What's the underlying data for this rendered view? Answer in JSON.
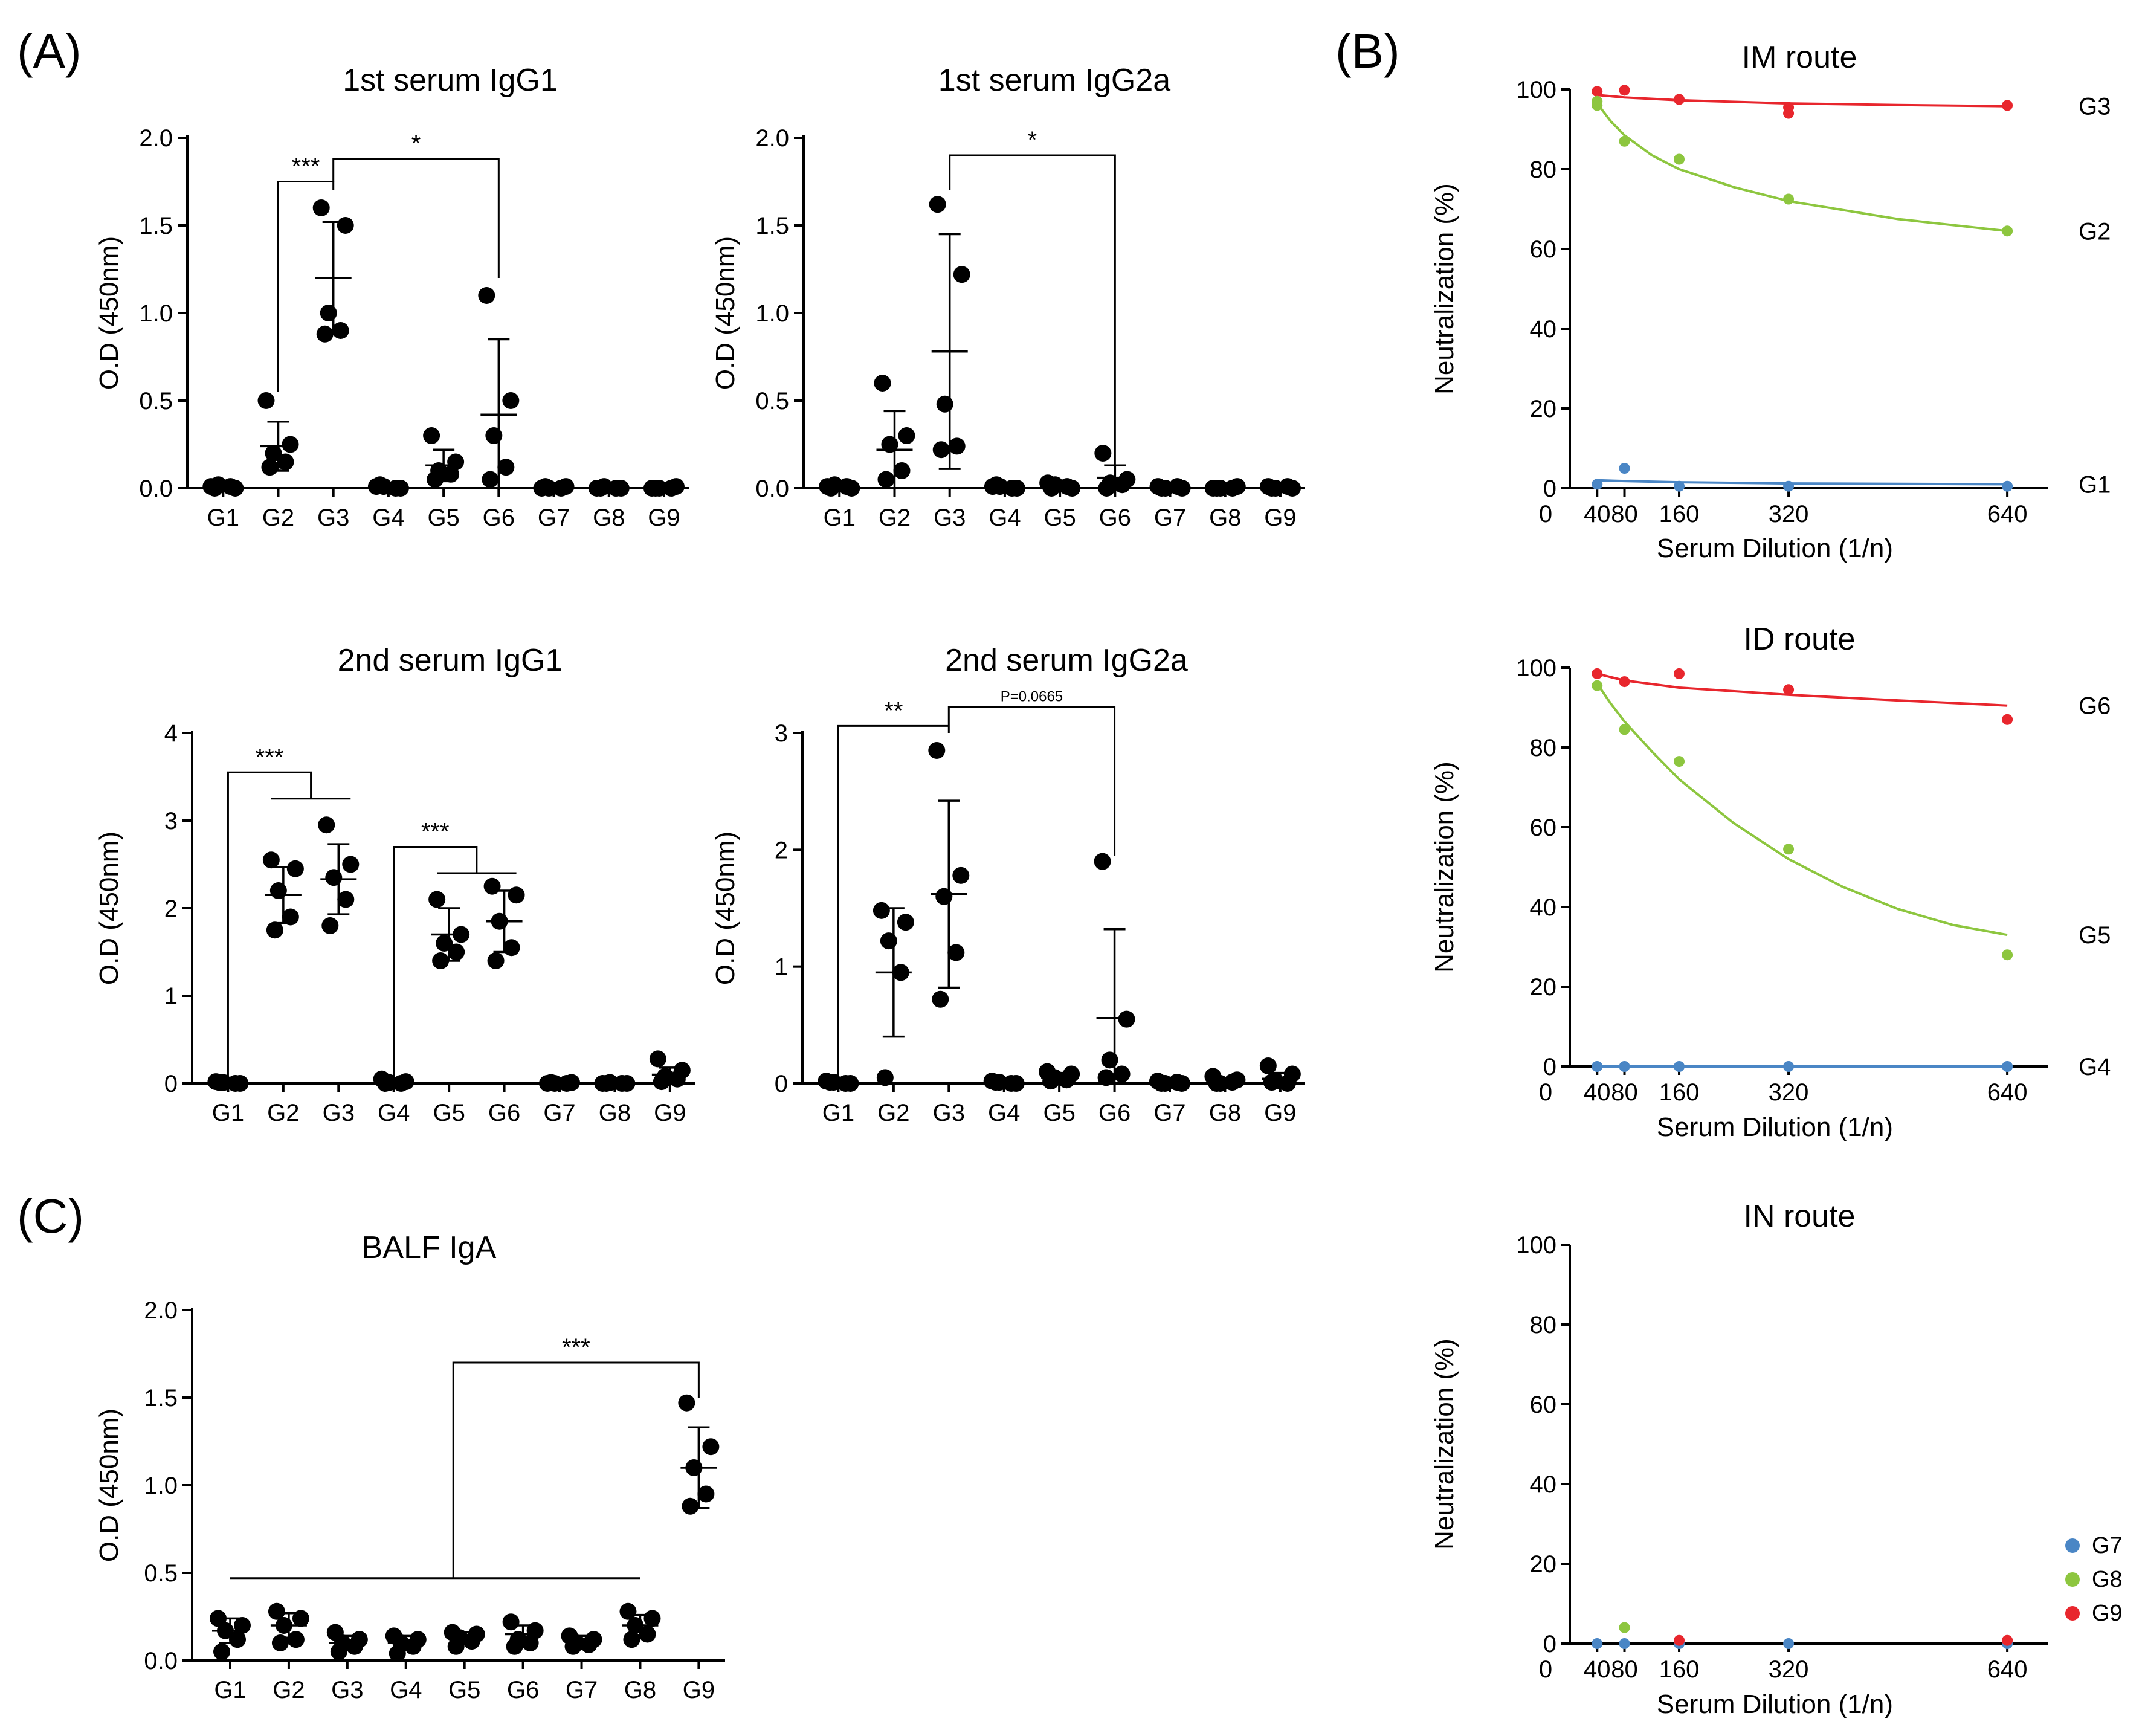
{
  "panel_labels": {
    "A": "(A)",
    "B": "(B)",
    "C": "(C)"
  },
  "chart_data": [
    {
      "id": "c1",
      "type": "scatter",
      "title": "1st serum IgG1",
      "ylabel": "O.D (450nm)",
      "xlabel": "",
      "ylim": [
        0,
        2.0
      ],
      "yticks": [
        0.0,
        0.5,
        1.0,
        1.5,
        2.0
      ],
      "ytick_labels": [
        "0.0",
        "0.5",
        "1.0",
        "1.5",
        "2.0"
      ],
      "categories": [
        "G1",
        "G2",
        "G3",
        "G4",
        "G5",
        "G6",
        "G7",
        "G8",
        "G9"
      ],
      "points": [
        [
          0.01,
          0.0,
          0.02,
          0.01,
          0.0
        ],
        [
          0.5,
          0.25,
          0.2,
          0.15,
          0.12
        ],
        [
          1.6,
          1.5,
          1.0,
          0.9,
          0.88
        ],
        [
          0.01,
          0.0,
          0.01,
          0.0,
          0.02
        ],
        [
          0.3,
          0.15,
          0.1,
          0.08,
          0.05
        ],
        [
          1.1,
          0.5,
          0.3,
          0.12,
          0.05
        ],
        [
          0.0,
          0.01,
          0.0,
          0.0,
          0.01
        ],
        [
          0.0,
          0.0,
          0.01,
          0.0,
          0.0
        ],
        [
          0.0,
          0.01,
          0.0,
          0.0,
          0.0
        ]
      ],
      "means": [
        0.01,
        0.24,
        1.2,
        0.01,
        0.13,
        0.42,
        0.0,
        0.0,
        0.0
      ],
      "sd": [
        0.0,
        0.14,
        0.32,
        0.0,
        0.09,
        0.43,
        0.0,
        0.0,
        0.0
      ],
      "significance": [
        {
          "type": "bracket",
          "from": 1,
          "to": 2,
          "y": 1.75,
          "drop_to": [
            0.55,
            1.7
          ],
          "label": "***"
        },
        {
          "type": "bracket",
          "from": 2,
          "to": 5,
          "y": 1.88,
          "drop_to": [
            1.75,
            1.2
          ],
          "label": "*"
        }
      ]
    },
    {
      "id": "c2",
      "type": "scatter",
      "title": "1st serum IgG2a",
      "ylabel": "O.D (450nm)",
      "xlabel": "",
      "ylim": [
        0,
        2.0
      ],
      "yticks": [
        0.0,
        0.5,
        1.0,
        1.5,
        2.0
      ],
      "ytick_labels": [
        "0.0",
        "0.5",
        "1.0",
        "1.5",
        "2.0"
      ],
      "categories": [
        "G1",
        "G2",
        "G3",
        "G4",
        "G5",
        "G6",
        "G7",
        "G8",
        "G9"
      ],
      "points": [
        [
          0.01,
          0.0,
          0.02,
          0.01,
          0.0
        ],
        [
          0.6,
          0.3,
          0.25,
          0.1,
          0.05
        ],
        [
          1.62,
          1.22,
          0.48,
          0.24,
          0.22
        ],
        [
          0.01,
          0.0,
          0.01,
          0.0,
          0.02
        ],
        [
          0.03,
          0.0,
          0.02,
          0.01,
          0.0
        ],
        [
          0.2,
          0.05,
          0.03,
          0.02,
          0.0
        ],
        [
          0.01,
          0.0,
          0.0,
          0.01,
          0.0
        ],
        [
          0.0,
          0.01,
          0.0,
          0.0,
          0.0
        ],
        [
          0.01,
          0.0,
          0.0,
          0.01,
          0.0
        ]
      ],
      "means": [
        0.01,
        0.22,
        0.78,
        0.01,
        0.01,
        0.06,
        0.0,
        0.0,
        0.0
      ],
      "sd": [
        0.0,
        0.22,
        0.67,
        0.0,
        0.01,
        0.07,
        0.0,
        0.0,
        0.0
      ],
      "significance": [
        {
          "type": "bracket",
          "from": 2,
          "to": 5,
          "y": 1.9,
          "drop_to": [
            1.7,
            0.12
          ],
          "label": "*"
        }
      ]
    },
    {
      "id": "c3",
      "type": "scatter",
      "title": "2nd serum IgG1",
      "ylabel": "O.D (450nm)",
      "xlabel": "",
      "ylim": [
        0,
        4
      ],
      "yticks": [
        0,
        1,
        2,
        3,
        4
      ],
      "ytick_labels": [
        "0",
        "1",
        "2",
        "3",
        "4"
      ],
      "categories": [
        "G1",
        "G2",
        "G3",
        "G4",
        "G5",
        "G6",
        "G7",
        "G8",
        "G9"
      ],
      "points": [
        [
          0.02,
          0.0,
          0.01,
          0.0,
          0.01
        ],
        [
          2.55,
          2.45,
          2.2,
          1.9,
          1.75
        ],
        [
          2.95,
          2.5,
          2.35,
          2.1,
          1.8
        ],
        [
          0.05,
          0.02,
          0.01,
          0.0,
          0.0
        ],
        [
          2.1,
          1.7,
          1.6,
          1.5,
          1.4
        ],
        [
          2.25,
          2.15,
          1.85,
          1.55,
          1.4
        ],
        [
          0.0,
          0.01,
          0.0,
          0.0,
          0.01
        ],
        [
          0.0,
          0.0,
          0.01,
          0.0,
          0.0
        ],
        [
          0.28,
          0.15,
          0.08,
          0.05,
          0.02
        ]
      ],
      "means": [
        0.01,
        2.15,
        2.33,
        0.02,
        1.7,
        1.85,
        0.0,
        0.0,
        0.1
      ],
      "sd": [
        0.0,
        0.32,
        0.4,
        0.01,
        0.3,
        0.35,
        0.0,
        0.0,
        0.08
      ],
      "significance": [
        {
          "type": "group",
          "from": 0,
          "to_group": [
            1,
            2
          ],
          "y": 3.55,
          "label": "***"
        },
        {
          "type": "group",
          "from": 3,
          "to_group": [
            4,
            5
          ],
          "y": 2.7,
          "label": "***"
        }
      ]
    },
    {
      "id": "c4",
      "type": "scatter",
      "title": "2nd serum IgG2a",
      "ylabel": "O.D (450nm)",
      "xlabel": "",
      "ylim": [
        0,
        3
      ],
      "yticks": [
        0,
        1,
        2,
        3
      ],
      "ytick_labels": [
        "0",
        "1",
        "2",
        "3"
      ],
      "categories": [
        "G1",
        "G2",
        "G3",
        "G4",
        "G5",
        "G6",
        "G7",
        "G8",
        "G9"
      ],
      "points": [
        [
          0.02,
          0.0,
          0.01,
          0.0,
          0.01
        ],
        [
          1.48,
          1.38,
          1.22,
          0.95,
          0.05
        ],
        [
          2.85,
          1.78,
          1.6,
          1.12,
          0.72
        ],
        [
          0.02,
          0.0,
          0.01,
          0.0,
          0.01
        ],
        [
          0.1,
          0.08,
          0.05,
          0.03,
          0.02
        ],
        [
          1.9,
          0.55,
          0.2,
          0.08,
          0.05
        ],
        [
          0.02,
          0.0,
          0.0,
          0.01,
          0.0
        ],
        [
          0.06,
          0.03,
          0.0,
          0.01,
          0.0
        ],
        [
          0.15,
          0.08,
          0.02,
          0.0,
          0.01
        ]
      ],
      "means": [
        0.01,
        0.95,
        1.62,
        0.01,
        0.05,
        0.56,
        0.0,
        0.02,
        0.04
      ],
      "sd": [
        0.0,
        0.55,
        0.8,
        0.0,
        0.04,
        0.76,
        0.0,
        0.02,
        0.05
      ],
      "significance": [
        {
          "type": "bracket",
          "from": 0,
          "to": 2,
          "y": 3.06,
          "drop_to": [
            0.05,
            3.06
          ],
          "label": "**"
        },
        {
          "type": "bracket",
          "from": 2,
          "to": 5,
          "y": 3.22,
          "drop_to": [
            3.0,
            1.95
          ],
          "label": "P=0.0665",
          "small": true
        }
      ]
    },
    {
      "id": "c5",
      "type": "scatter",
      "title": "BALF IgA",
      "ylabel": "O.D (450nm)",
      "xlabel": "",
      "ylim": [
        0,
        2.0
      ],
      "yticks": [
        0.0,
        0.5,
        1.0,
        1.5,
        2.0
      ],
      "ytick_labels": [
        "0.0",
        "0.5",
        "1.0",
        "1.5",
        "2.0"
      ],
      "categories": [
        "G1",
        "G2",
        "G3",
        "G4",
        "G5",
        "G6",
        "G7",
        "G8",
        "G9"
      ],
      "points": [
        [
          0.24,
          0.2,
          0.17,
          0.12,
          0.05
        ],
        [
          0.28,
          0.24,
          0.2,
          0.12,
          0.1
        ],
        [
          0.16,
          0.12,
          0.1,
          0.08,
          0.05
        ],
        [
          0.14,
          0.12,
          0.1,
          0.08,
          0.04
        ],
        [
          0.16,
          0.15,
          0.13,
          0.11,
          0.08
        ],
        [
          0.22,
          0.17,
          0.12,
          0.1,
          0.08
        ],
        [
          0.14,
          0.12,
          0.1,
          0.09,
          0.08
        ],
        [
          0.28,
          0.24,
          0.2,
          0.15,
          0.12
        ],
        [
          1.47,
          1.22,
          1.1,
          0.95,
          0.88
        ]
      ],
      "means": [
        0.17,
        0.2,
        0.1,
        0.1,
        0.13,
        0.15,
        0.11,
        0.2,
        1.1
      ],
      "sd": [
        0.07,
        0.07,
        0.04,
        0.04,
        0.03,
        0.05,
        0.03,
        0.06,
        0.23
      ],
      "significance": [
        {
          "type": "group_below",
          "from_range": [
            0,
            7
          ],
          "to": 8,
          "y_line": 0.47,
          "y": 1.7,
          "drop_to": [
            0.47,
            1.5
          ],
          "label": "***"
        }
      ]
    },
    {
      "id": "n1",
      "type": "line",
      "title": "IM route",
      "ylabel": "Neutralization (%)",
      "xlabel": "Serum Dilution (1/n)",
      "xlim": [
        0,
        700
      ],
      "ylim": [
        0,
        100
      ],
      "xticks": [
        0,
        40,
        80,
        160,
        320,
        640
      ],
      "xtick_labels": [
        "0",
        "40",
        "80",
        "160",
        "320",
        "640"
      ],
      "yticks": [
        0,
        20,
        40,
        60,
        80,
        100
      ],
      "ytick_labels": [
        "0",
        "20",
        "40",
        "60",
        "80",
        "100"
      ],
      "series": [
        {
          "name": "G3",
          "color": "#e8262d",
          "x": [
            40,
            80,
            160,
            320,
            320,
            640
          ],
          "y": [
            99.5,
            99.8,
            97.5,
            95.5,
            94.0,
            96.0
          ],
          "fit_x": [
            40,
            80,
            160,
            320,
            480,
            640
          ],
          "fit_y": [
            98.6,
            98.0,
            97.3,
            96.5,
            96.1,
            95.8
          ]
        },
        {
          "name": "G2",
          "color": "#8dc63f",
          "x": [
            40,
            40,
            80,
            160,
            320,
            640
          ],
          "y": [
            97.0,
            96.0,
            87.0,
            82.5,
            72.5,
            64.5
          ],
          "fit_x": [
            40,
            60,
            80,
            120,
            160,
            240,
            320,
            480,
            640
          ],
          "fit_y": [
            96.5,
            92.0,
            88.5,
            83.5,
            80.0,
            75.5,
            72.0,
            67.5,
            64.5
          ]
        },
        {
          "name": "G1",
          "color": "#4a86c5",
          "x": [
            40,
            80,
            160,
            320,
            640
          ],
          "y": [
            1.0,
            5.0,
            0.5,
            0.5,
            0.5
          ],
          "fit_x": [
            40,
            80,
            160,
            320,
            640
          ],
          "fit_y": [
            2.0,
            1.8,
            1.5,
            1.2,
            1.0
          ]
        }
      ]
    },
    {
      "id": "n2",
      "type": "line",
      "title": "ID route",
      "ylabel": "Neutralization (%)",
      "xlabel": "Serum Dilution (1/n)",
      "xlim": [
        0,
        700
      ],
      "ylim": [
        0,
        100
      ],
      "xticks": [
        0,
        40,
        80,
        160,
        320,
        640
      ],
      "xtick_labels": [
        "0",
        "40",
        "80",
        "160",
        "320",
        "640"
      ],
      "yticks": [
        0,
        20,
        40,
        60,
        80,
        100
      ],
      "ytick_labels": [
        "0",
        "20",
        "40",
        "60",
        "80",
        "100"
      ],
      "series": [
        {
          "name": "G6",
          "color": "#e8262d",
          "x": [
            40,
            80,
            160,
            320,
            640
          ],
          "y": [
            98.5,
            96.5,
            98.5,
            94.5,
            87.0
          ],
          "fit_x": [
            40,
            80,
            160,
            320,
            480,
            640
          ],
          "fit_y": [
            98.5,
            96.8,
            95.0,
            93.2,
            91.8,
            90.5
          ]
        },
        {
          "name": "G5",
          "color": "#8dc63f",
          "x": [
            40,
            80,
            160,
            320,
            640
          ],
          "y": [
            95.5,
            84.5,
            76.5,
            54.5,
            28.0
          ],
          "fit_x": [
            40,
            60,
            80,
            120,
            160,
            240,
            320,
            400,
            480,
            560,
            640
          ],
          "fit_y": [
            96.0,
            91.0,
            86.5,
            79.0,
            72.0,
            61.0,
            52.0,
            45.0,
            39.5,
            35.5,
            33.0
          ]
        },
        {
          "name": "G4",
          "color": "#4a86c5",
          "x": [
            40,
            80,
            160,
            320,
            640
          ],
          "y": [
            0.0,
            0.0,
            0.0,
            0.0,
            0.0
          ],
          "fit_x": [
            40,
            640
          ],
          "fit_y": [
            0.0,
            0.0
          ]
        }
      ]
    },
    {
      "id": "n3",
      "type": "scatter",
      "title": "IN route",
      "ylabel": "Neutralization (%)",
      "xlabel": "Serum Dilution (1/n)",
      "xlim": [
        0,
        700
      ],
      "ylim": [
        0,
        100
      ],
      "xticks": [
        0,
        40,
        80,
        160,
        320,
        640
      ],
      "xtick_labels": [
        "0",
        "40",
        "80",
        "160",
        "320",
        "640"
      ],
      "yticks": [
        0,
        20,
        40,
        60,
        80,
        100
      ],
      "ytick_labels": [
        "0",
        "20",
        "40",
        "60",
        "80",
        "100"
      ],
      "legend": [
        "G7",
        "G8",
        "G9"
      ],
      "series": [
        {
          "name": "G7",
          "color": "#4a86c5",
          "x": [
            40,
            80,
            160,
            320,
            640
          ],
          "y": [
            0.0,
            0.0,
            0.0,
            0.0,
            0.0
          ]
        },
        {
          "name": "G8",
          "color": "#8dc63f",
          "x": [
            80
          ],
          "y": [
            4.0
          ]
        },
        {
          "name": "G9",
          "color": "#e8262d",
          "x": [
            160,
            640
          ],
          "y": [
            0.8,
            0.8
          ]
        }
      ]
    }
  ]
}
